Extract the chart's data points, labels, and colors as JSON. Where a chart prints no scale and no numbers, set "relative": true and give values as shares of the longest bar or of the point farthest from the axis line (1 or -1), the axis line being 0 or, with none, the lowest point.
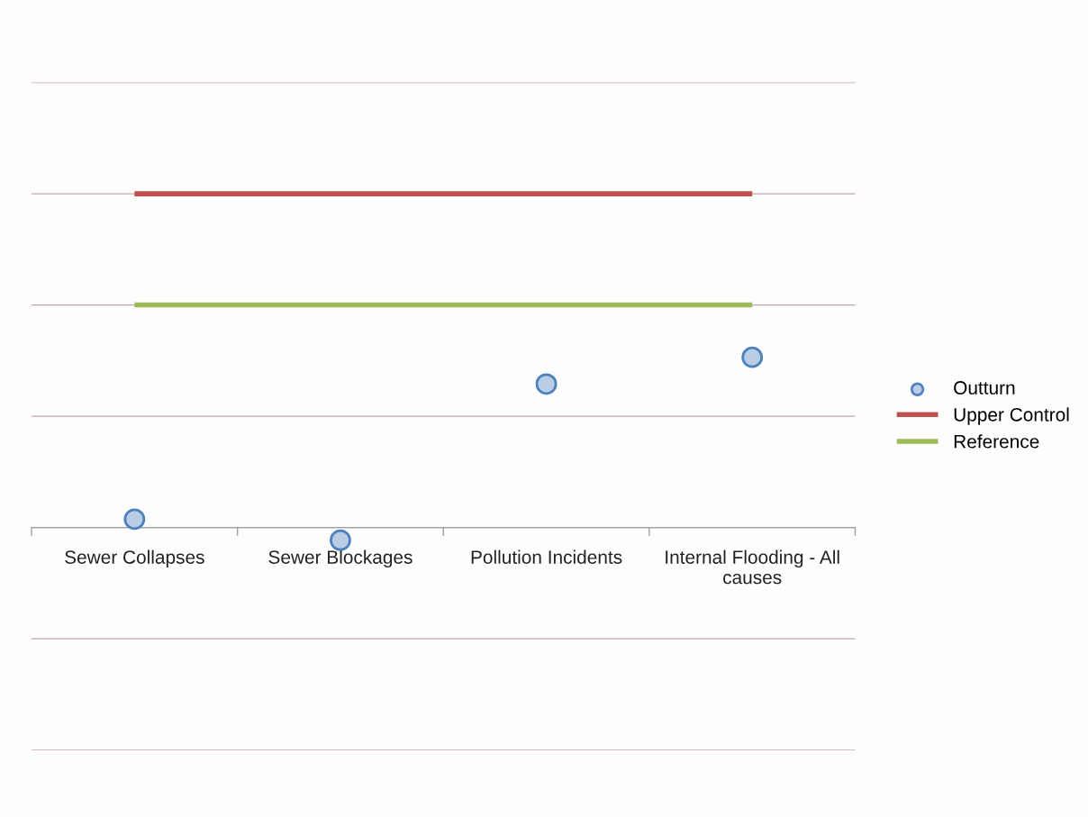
{
  "chart_data": {
    "type": "scatter",
    "relative": true,
    "categories": [
      "Sewer Collapses",
      "Sewer Blockages",
      "Pollution Incidents",
      "Internal Flooding - All causes"
    ],
    "series": [
      {
        "name": "Outturn",
        "type": "scatter",
        "color": "#b9cde5",
        "marker": "circle",
        "values": [
          0.025,
          -0.038,
          0.43,
          0.51
        ]
      },
      {
        "name": "Upper Control",
        "type": "line",
        "color": "#c0504d",
        "marker": "none",
        "values": [
          1,
          1,
          1,
          1
        ]
      },
      {
        "name": "Reference",
        "type": "line",
        "color": "#9bbb59",
        "marker": "none",
        "values": [
          0.667,
          0.667,
          0.667,
          0.667
        ]
      }
    ],
    "grid": "y",
    "legend": "right"
  }
}
